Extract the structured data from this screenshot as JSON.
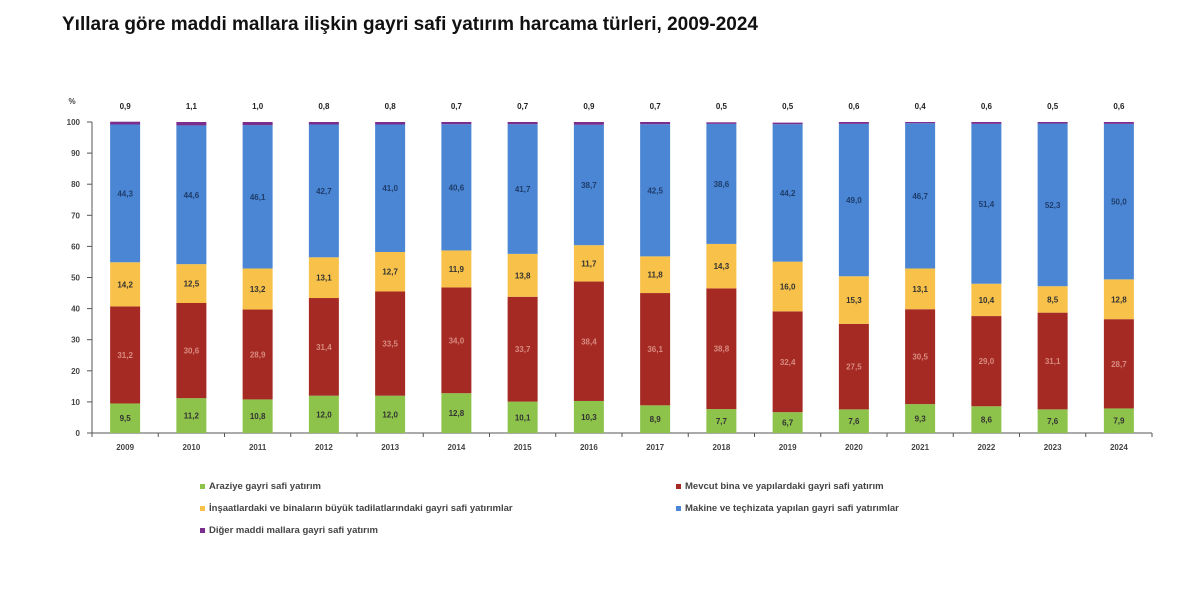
{
  "title": "Yıllara göre maddi mallara ilişkin gayri safi yatırım harcama türleri, 2009-2024",
  "chart_data": {
    "type": "bar",
    "stacked": true,
    "ylabel": "%",
    "ylim": [
      0,
      100
    ],
    "yticks": [
      0,
      10,
      20,
      30,
      40,
      50,
      60,
      70,
      80,
      90,
      100
    ],
    "categories": [
      "2009",
      "2010",
      "2011",
      "2012",
      "2013",
      "2014",
      "2015",
      "2016",
      "2017",
      "2018",
      "2019",
      "2020",
      "2021",
      "2022",
      "2023",
      "2024"
    ],
    "series": [
      {
        "name": "Araziye gayri safi yatırım",
        "color": "#8dc24b",
        "label_color": "#333333",
        "values": [
          9.5,
          11.2,
          10.8,
          12.0,
          12.0,
          12.8,
          10.1,
          10.3,
          8.9,
          7.7,
          6.7,
          7.6,
          9.3,
          8.6,
          7.6,
          7.9
        ],
        "labels": [
          "9,5",
          "11,2",
          "10,8",
          "12,0",
          "12,0",
          "12,8",
          "10,1",
          "10,3",
          "8,9",
          "7,7",
          "6,7",
          "7,6",
          "9,3",
          "8,6",
          "7,6",
          "7,9"
        ]
      },
      {
        "name": "Mevcut bina ve yapılardaki gayri safi yatırım",
        "color": "#a52a23",
        "label_color": "#d88a80",
        "values": [
          31.2,
          30.6,
          28.9,
          31.4,
          33.5,
          34.0,
          33.7,
          38.4,
          36.1,
          38.8,
          32.4,
          27.5,
          30.5,
          29.0,
          31.1,
          28.7
        ],
        "labels": [
          "31,2",
          "30,6",
          "28,9",
          "31,4",
          "33,5",
          "34,0",
          "33,7",
          "38,4",
          "36,1",
          "38,8",
          "32,4",
          "27,5",
          "30,5",
          "29,0",
          "31,1",
          "28,7"
        ]
      },
      {
        "name": "İnşaatlardaki ve binaların büyük tadilatlarındaki gayri safi yatırımlar",
        "color": "#f7c14a",
        "label_color": "#333333",
        "values": [
          14.2,
          12.5,
          13.2,
          13.1,
          12.7,
          11.9,
          13.8,
          11.7,
          11.8,
          14.3,
          16.0,
          15.3,
          13.1,
          10.4,
          8.5,
          12.8
        ],
        "labels": [
          "14,2",
          "12,5",
          "13,2",
          "13,1",
          "12,7",
          "11,9",
          "13,8",
          "11,7",
          "11,8",
          "14,3",
          "16,0",
          "15,3",
          "13,1",
          "10,4",
          "8,5",
          "12,8"
        ]
      },
      {
        "name": "Makine ve teçhizata yapılan gayri safi yatırımlar",
        "color": "#4a86d4",
        "label_color": "#1f3d6b",
        "values": [
          44.3,
          44.6,
          46.1,
          42.7,
          41.0,
          40.6,
          41.7,
          38.7,
          42.5,
          38.6,
          44.2,
          49.0,
          46.7,
          51.4,
          52.3,
          50.0
        ],
        "labels": [
          "44,3",
          "44,6",
          "46,1",
          "42,7",
          "41,0",
          "40,6",
          "41,7",
          "38,7",
          "42,5",
          "38,6",
          "44,2",
          "49,0",
          "46,7",
          "51,4",
          "52,3",
          "50,0"
        ]
      },
      {
        "name": "Diğer maddi mallara gayri safi yatırım",
        "color": "#7b2d8e",
        "label_color": "#222222",
        "values": [
          0.9,
          1.1,
          1.0,
          0.8,
          0.8,
          0.7,
          0.7,
          0.9,
          0.7,
          0.5,
          0.5,
          0.6,
          0.4,
          0.6,
          0.5,
          0.6
        ],
        "labels": [
          "0,9",
          "1,1",
          "1,0",
          "0,8",
          "0,8",
          "0,7",
          "0,7",
          "0,9",
          "0,7",
          "0,5",
          "0,5",
          "0,6",
          "0,4",
          "0,6",
          "0,5",
          "0,6"
        ]
      }
    ],
    "legend_position": "bottom"
  }
}
